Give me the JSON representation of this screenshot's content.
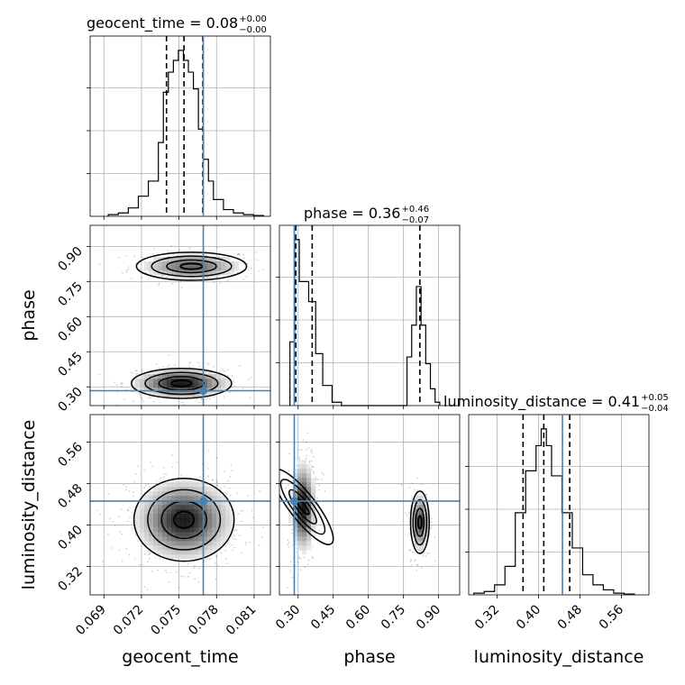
{
  "chart_data": {
    "type": "corner",
    "parameters": [
      "geocent_time",
      "phase",
      "luminosity_distance"
    ],
    "axis_labels": {
      "geocent_time": "geocent_time",
      "phase": "phase",
      "luminosity_distance": "luminosity_distance"
    },
    "ranges": {
      "geocent_time": [
        0.0679,
        0.0823
      ],
      "phase": [
        0.22,
        0.99
      ],
      "luminosity_distance": [
        0.265,
        0.613
      ]
    },
    "ticks": {
      "geocent_time": {
        "values": [
          0.069,
          0.072,
          0.075,
          0.078,
          0.081
        ],
        "labels": [
          "0.069",
          "0.072",
          "0.075",
          "0.078",
          "0.081"
        ]
      },
      "phase": {
        "values": [
          0.3,
          0.45,
          0.6,
          0.75,
          0.9
        ],
        "labels": [
          "0.30",
          "0.45",
          "0.60",
          "0.75",
          "0.90"
        ]
      },
      "luminosity_distance": {
        "values": [
          0.32,
          0.4,
          0.48,
          0.56
        ],
        "labels": [
          "0.32",
          "0.40",
          "0.48",
          "0.56"
        ]
      }
    },
    "truths": {
      "geocent_time": 0.07694,
      "phase": 0.2835,
      "luminosity_distance": 0.446
    },
    "truth_color": "#4682b4",
    "titles": [
      {
        "param": "geocent_time",
        "text": "geocent_time = 0.08",
        "sup": "+0.00",
        "sub": "−0.00"
      },
      {
        "param": "phase",
        "text": "phase = 0.36",
        "sup": "+0.46",
        "sub": "−0.07"
      },
      {
        "param": "luminosity_distance",
        "text": "luminosity_distance = 0.41",
        "sup": "+0.05",
        "sub": "−0.04"
      }
    ],
    "quantiles": {
      "geocent_time": [
        0.074,
        0.0754,
        0.0769
      ],
      "phase": [
        0.29,
        0.36,
        0.82
      ],
      "luminosity_distance": [
        0.37,
        0.41,
        0.46
      ]
    },
    "histograms": {
      "geocent_time": {
        "edges": [
          0.06935,
          0.07015,
          0.07095,
          0.07175,
          0.07255,
          0.07335,
          0.07375,
          0.07415,
          0.07455,
          0.07495,
          0.07535,
          0.07575,
          0.07615,
          0.07655,
          0.07695,
          0.07735,
          0.07775,
          0.07855,
          0.07935,
          0.08015,
          0.08095,
          0.08175
        ],
        "counts": [
          0.01,
          0.02,
          0.05,
          0.12,
          0.21,
          0.44,
          0.74,
          0.86,
          0.93,
          0.99,
          0.93,
          0.86,
          0.76,
          0.52,
          0.34,
          0.21,
          0.1,
          0.04,
          0.02,
          0.01,
          0.005
        ]
      },
      "phase": {
        "edges": [
          0.265,
          0.285,
          0.305,
          0.325,
          0.345,
          0.375,
          0.405,
          0.445,
          0.485,
          0.765,
          0.785,
          0.805,
          0.825,
          0.845,
          0.865,
          0.885,
          0.905
        ],
        "counts": [
          0.38,
          0.99,
          0.74,
          0.74,
          0.62,
          0.31,
          0.12,
          0.02,
          0.0,
          0.29,
          0.48,
          0.71,
          0.48,
          0.25,
          0.1,
          0.02
        ]
      },
      "luminosity_distance": {
        "edges": [
          0.275,
          0.295,
          0.315,
          0.335,
          0.355,
          0.375,
          0.395,
          0.405,
          0.415,
          0.425,
          0.445,
          0.465,
          0.485,
          0.505,
          0.525,
          0.545,
          0.565,
          0.585
        ],
        "counts": [
          0.01,
          0.02,
          0.06,
          0.17,
          0.49,
          0.74,
          0.89,
          0.99,
          0.89,
          0.71,
          0.49,
          0.28,
          0.12,
          0.06,
          0.03,
          0.01,
          0.005
        ]
      }
    },
    "density_2d": [
      {
        "x": "geocent_time",
        "y": "phase",
        "modes": [
          {
            "cx": 0.076,
            "cy": 0.815,
            "sx": 0.0022,
            "sy": 0.03,
            "weight": 0.4
          },
          {
            "cx": 0.0752,
            "cy": 0.315,
            "sx": 0.002,
            "sy": 0.032,
            "weight": 0.6
          }
        ]
      },
      {
        "x": "geocent_time",
        "y": "luminosity_distance",
        "modes": [
          {
            "cx": 0.0754,
            "cy": 0.41,
            "sx": 0.002,
            "sy": 0.04,
            "weight": 1.0
          }
        ]
      },
      {
        "x": "phase",
        "y": "luminosity_distance",
        "modes": [
          {
            "cx": 0.32,
            "cy": 0.435,
            "sx": 0.028,
            "sy": 0.045,
            "weight": 0.55,
            "tilt": -0.55
          },
          {
            "cx": 0.82,
            "cy": 0.405,
            "sx": 0.02,
            "sy": 0.03,
            "weight": 0.45
          }
        ]
      }
    ],
    "grid": true
  }
}
